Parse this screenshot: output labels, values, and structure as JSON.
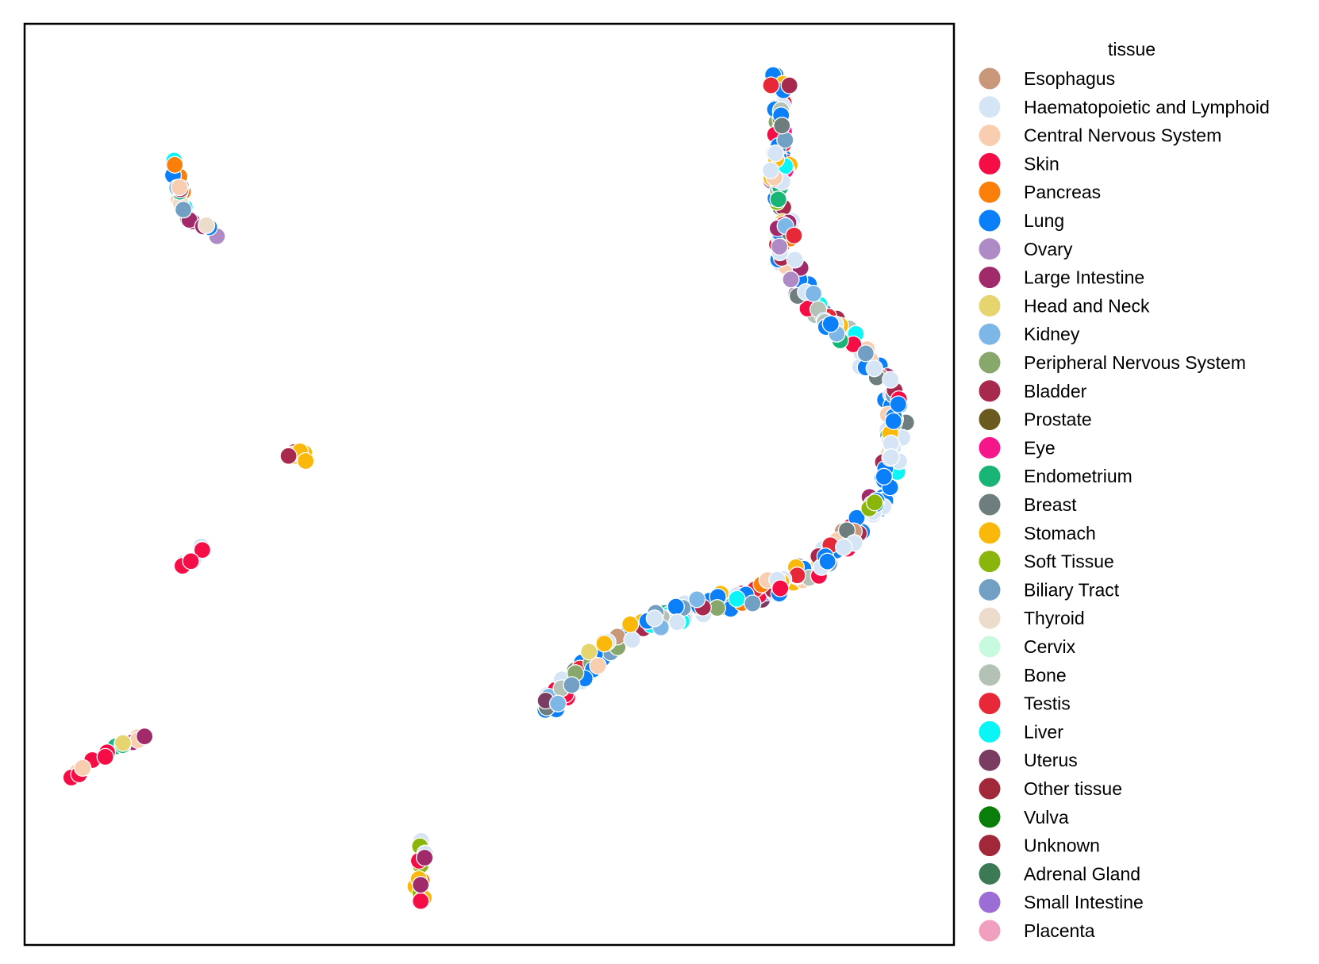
{
  "chart_data": {
    "type": "scatter",
    "xlabel": "",
    "ylabel": "",
    "xlim": [
      0,
      100
    ],
    "ylim": [
      0,
      100
    ],
    "grid": false,
    "ticks": false,
    "legend": {
      "title": "tissue",
      "placement": "outside-right",
      "entries": [
        {
          "label": "Esophagus",
          "color": "#c9977a"
        },
        {
          "label": "Haematopoietic and Lymphoid",
          "color": "#d6e5f6"
        },
        {
          "label": "Central Nervous System",
          "color": "#f9cdb0"
        },
        {
          "label": "Skin",
          "color": "#f50d45"
        },
        {
          "label": "Pancreas",
          "color": "#fa7e0a"
        },
        {
          "label": "Lung",
          "color": "#0a7ff7"
        },
        {
          "label": "Ovary",
          "color": "#ae8bc4"
        },
        {
          "label": "Large Intestine",
          "color": "#a02a6a"
        },
        {
          "label": "Head and Neck",
          "color": "#e6d46e"
        },
        {
          "label": "Kidney",
          "color": "#7db7e8"
        },
        {
          "label": "Peripheral Nervous System",
          "color": "#88a86b"
        },
        {
          "label": "Bladder",
          "color": "#a8294e"
        },
        {
          "label": "Prostate",
          "color": "#6b5a20"
        },
        {
          "label": "Eye",
          "color": "#f5168a"
        },
        {
          "label": "Endometrium",
          "color": "#18b577"
        },
        {
          "label": "Breast",
          "color": "#6e7e7e"
        },
        {
          "label": "Stomach",
          "color": "#fab90a"
        },
        {
          "label": "Soft Tissue",
          "color": "#8ab50a"
        },
        {
          "label": "Biliary Tract",
          "color": "#72a0c4"
        },
        {
          "label": "Thyroid",
          "color": "#ecdccb"
        },
        {
          "label": "Cervix",
          "color": "#c8fadf"
        },
        {
          "label": "Bone",
          "color": "#b4c2b6"
        },
        {
          "label": "Testis",
          "color": "#e62838"
        },
        {
          "label": "Liver",
          "color": "#0af5f5"
        },
        {
          "label": "Uterus",
          "color": "#7a3c62"
        },
        {
          "label": "Other tissue",
          "color": "#a02838"
        },
        {
          "label": "Vulva",
          "color": "#0a7e0a"
        },
        {
          "label": "Unknown",
          "color": "#a02838"
        },
        {
          "label": "Adrenal Gland",
          "color": "#3c7a56"
        },
        {
          "label": "Small Intestine",
          "color": "#9a6ed4"
        },
        {
          "label": "Placenta",
          "color": "#f0a0be"
        }
      ]
    },
    "clusters": [
      {
        "path": [
          [
            81.3,
            94.5
          ],
          [
            81.3,
            88
          ],
          [
            81.4,
            82
          ],
          [
            81.8,
            76
          ],
          [
            82.5,
            73
          ],
          [
            84.5,
            70
          ],
          [
            87,
            67.5
          ],
          [
            89.5,
            65
          ],
          [
            91.5,
            62.5
          ],
          [
            93.3,
            60
          ],
          [
            93.8,
            56.5
          ],
          [
            93.3,
            53
          ],
          [
            92.5,
            50
          ],
          [
            91,
            47
          ],
          [
            89.5,
            45
          ],
          [
            87.5,
            43
          ],
          [
            85,
            41
          ],
          [
            82,
            39.5
          ],
          [
            78,
            38
          ],
          [
            74,
            37
          ],
          [
            70,
            35.8
          ],
          [
            66,
            34.5
          ],
          [
            63,
            32.5
          ],
          [
            60,
            30
          ],
          [
            57.5,
            27.3
          ],
          [
            55.5,
            25
          ]
        ],
        "count": 360,
        "spread": 1.1,
        "composition": {
          "Lung": 0.2,
          "Haematopoietic and Lymphoid": 0.2,
          "Central Nervous System": 0.05,
          "Skin": 0.05,
          "Breast": 0.05,
          "Bone": 0.05,
          "Stomach": 0.04,
          "Endometrium": 0.04,
          "Bladder": 0.04,
          "Ovary": 0.03,
          "Large Intestine": 0.03,
          "Kidney": 0.03,
          "Biliary Tract": 0.03,
          "Head and Neck": 0.03,
          "Liver": 0.03,
          "Testis": 0.03,
          "Thyroid": 0.02,
          "Peripheral Nervous System": 0.02,
          "Soft Tissue": 0.02,
          "Esophagus": 0.02,
          "Pancreas": 0.02,
          "Prostate": 0.01,
          "Eye": 0.01,
          "Other tissue": 0.01,
          "Uterus": 0.01
        }
      },
      {
        "path": [
          [
            16,
            87
          ],
          [
            16.2,
            84
          ],
          [
            16.8,
            81
          ],
          [
            17.7,
            78.5
          ],
          [
            20.6,
            77.3
          ]
        ],
        "count": 22,
        "spread": 0.5,
        "composition": {
          "Large Intestine": 0.15,
          "Biliary Tract": 0.1,
          "Lung": 0.15,
          "Central Nervous System": 0.15,
          "Pancreas": 0.1,
          "Liver": 0.05,
          "Ovary": 0.1,
          "Kidney": 0.05,
          "Thyroid": 0.05,
          "Endometrium": 0.05,
          "Head and Neck": 0.05
        }
      },
      {
        "path": [
          [
            28.2,
            53.5
          ],
          [
            29.8,
            53.2
          ],
          [
            30.4,
            52
          ],
          [
            28.8,
            51.6
          ]
        ],
        "count": 9,
        "spread": 0.4,
        "composition": {
          "Bladder": 0.3,
          "Stomach": 0.15,
          "Breast": 0.15,
          "Soft Tissue": 0.15,
          "Endometrium": 0.1,
          "Central Nervous System": 0.15
        }
      },
      {
        "path": [
          [
            16.5,
            41
          ],
          [
            18,
            42
          ],
          [
            19.5,
            43.5
          ]
        ],
        "count": 7,
        "spread": 0.3,
        "composition": {
          "Haematopoietic and Lymphoid": 0.3,
          "Biliary Tract": 0.2,
          "Soft Tissue": 0.2,
          "Bone": 0.15,
          "Skin": 0.15
        }
      },
      {
        "path": [
          [
            4.5,
            18
          ],
          [
            7,
            19.7
          ],
          [
            10,
            21.5
          ],
          [
            13.5,
            23
          ]
        ],
        "count": 16,
        "spread": 0.4,
        "composition": {
          "Skin": 0.3,
          "Endometrium": 0.25,
          "Large Intestine": 0.15,
          "Uterus": 0.1,
          "Head and Neck": 0.1,
          "Central Nervous System": 0.1
        }
      },
      {
        "path": [
          [
            43,
            11.5
          ],
          [
            42.7,
            9
          ],
          [
            42.5,
            6.5
          ],
          [
            42.8,
            4.7
          ]
        ],
        "count": 16,
        "spread": 0.5,
        "composition": {
          "Large Intestine": 0.2,
          "Liver": 0.1,
          "Haematopoietic and Lymphoid": 0.15,
          "Stomach": 0.15,
          "Pancreas": 0.1,
          "Skin": 0.1,
          "Soft Tissue": 0.1,
          "Prostate": 0.1
        }
      }
    ]
  }
}
